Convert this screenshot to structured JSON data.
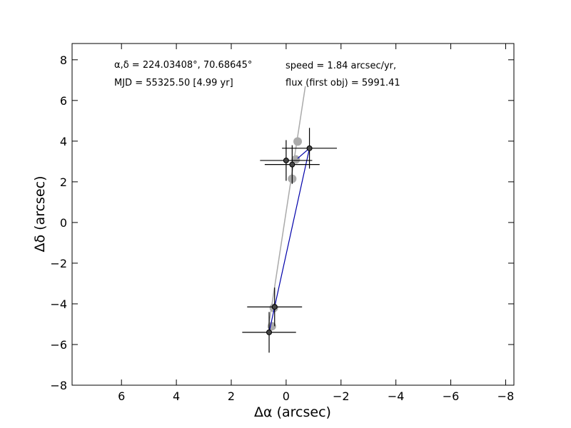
{
  "chart_data": {
    "type": "scatter",
    "xlabel": "Δα (arcsec)",
    "ylabel": "Δδ (arcsec)",
    "xlim": [
      7.8,
      -8.3
    ],
    "ylim": [
      -8.0,
      8.8
    ],
    "x_ticks": [
      6,
      4,
      2,
      0,
      -2,
      -4,
      -6,
      -8
    ],
    "y_ticks": [
      8,
      6,
      4,
      2,
      0,
      -2,
      -4,
      -6,
      -8
    ],
    "x_tick_labels": [
      "6",
      "4",
      "2",
      "0",
      "−2",
      "−4",
      "−6",
      "−8"
    ],
    "y_tick_labels": [
      "8",
      "6",
      "4",
      "2",
      "0",
      "−2",
      "−4",
      "−6",
      "−8"
    ],
    "grid": false,
    "annotations": {
      "radec": "α,δ = 224.03408°, 70.68645°",
      "mjd": "MJD = 55325.50 [4.99 yr]",
      "speed": "speed = 1.84 arcsec/yr,",
      "flux": "flux (first obj) = 5991.41"
    },
    "colors": {
      "gray": "#aaaaaa",
      "blue": "#0000aa",
      "black": "#000000",
      "point_fill": "#444444"
    },
    "gray_points": [
      {
        "x": -0.42,
        "y": 3.98
      },
      {
        "x": -0.35,
        "y": 3.1
      },
      {
        "x": -0.22,
        "y": 2.15
      },
      {
        "x": 0.45,
        "y": -4.2
      },
      {
        "x": 0.52,
        "y": -5.1
      }
    ],
    "gray_line": [
      {
        "x": 0.65,
        "y": -5.2
      },
      {
        "x": -0.7,
        "y": 6.7
      }
    ],
    "black_points": [
      {
        "x": 0.0,
        "y": 3.05,
        "xerr": 0.95,
        "yerr": 1.0
      },
      {
        "x": -0.22,
        "y": 2.85,
        "xerr": 1.0,
        "yerr": 0.95
      },
      {
        "x": -0.85,
        "y": 3.65,
        "xerr": 1.0,
        "yerr": 1.0
      },
      {
        "x": 0.42,
        "y": -4.15,
        "xerr": 1.0,
        "yerr": 0.95
      },
      {
        "x": 0.62,
        "y": -5.4,
        "xerr": 0.98,
        "yerr": 1.0
      }
    ],
    "blue_path": [
      {
        "x": 0.62,
        "y": -5.4
      },
      {
        "x": 0.42,
        "y": -4.15
      },
      {
        "x": -0.85,
        "y": 3.65
      },
      {
        "x": -0.42,
        "y": 3.15
      },
      {
        "x": -0.85,
        "y": 3.65
      }
    ]
  }
}
